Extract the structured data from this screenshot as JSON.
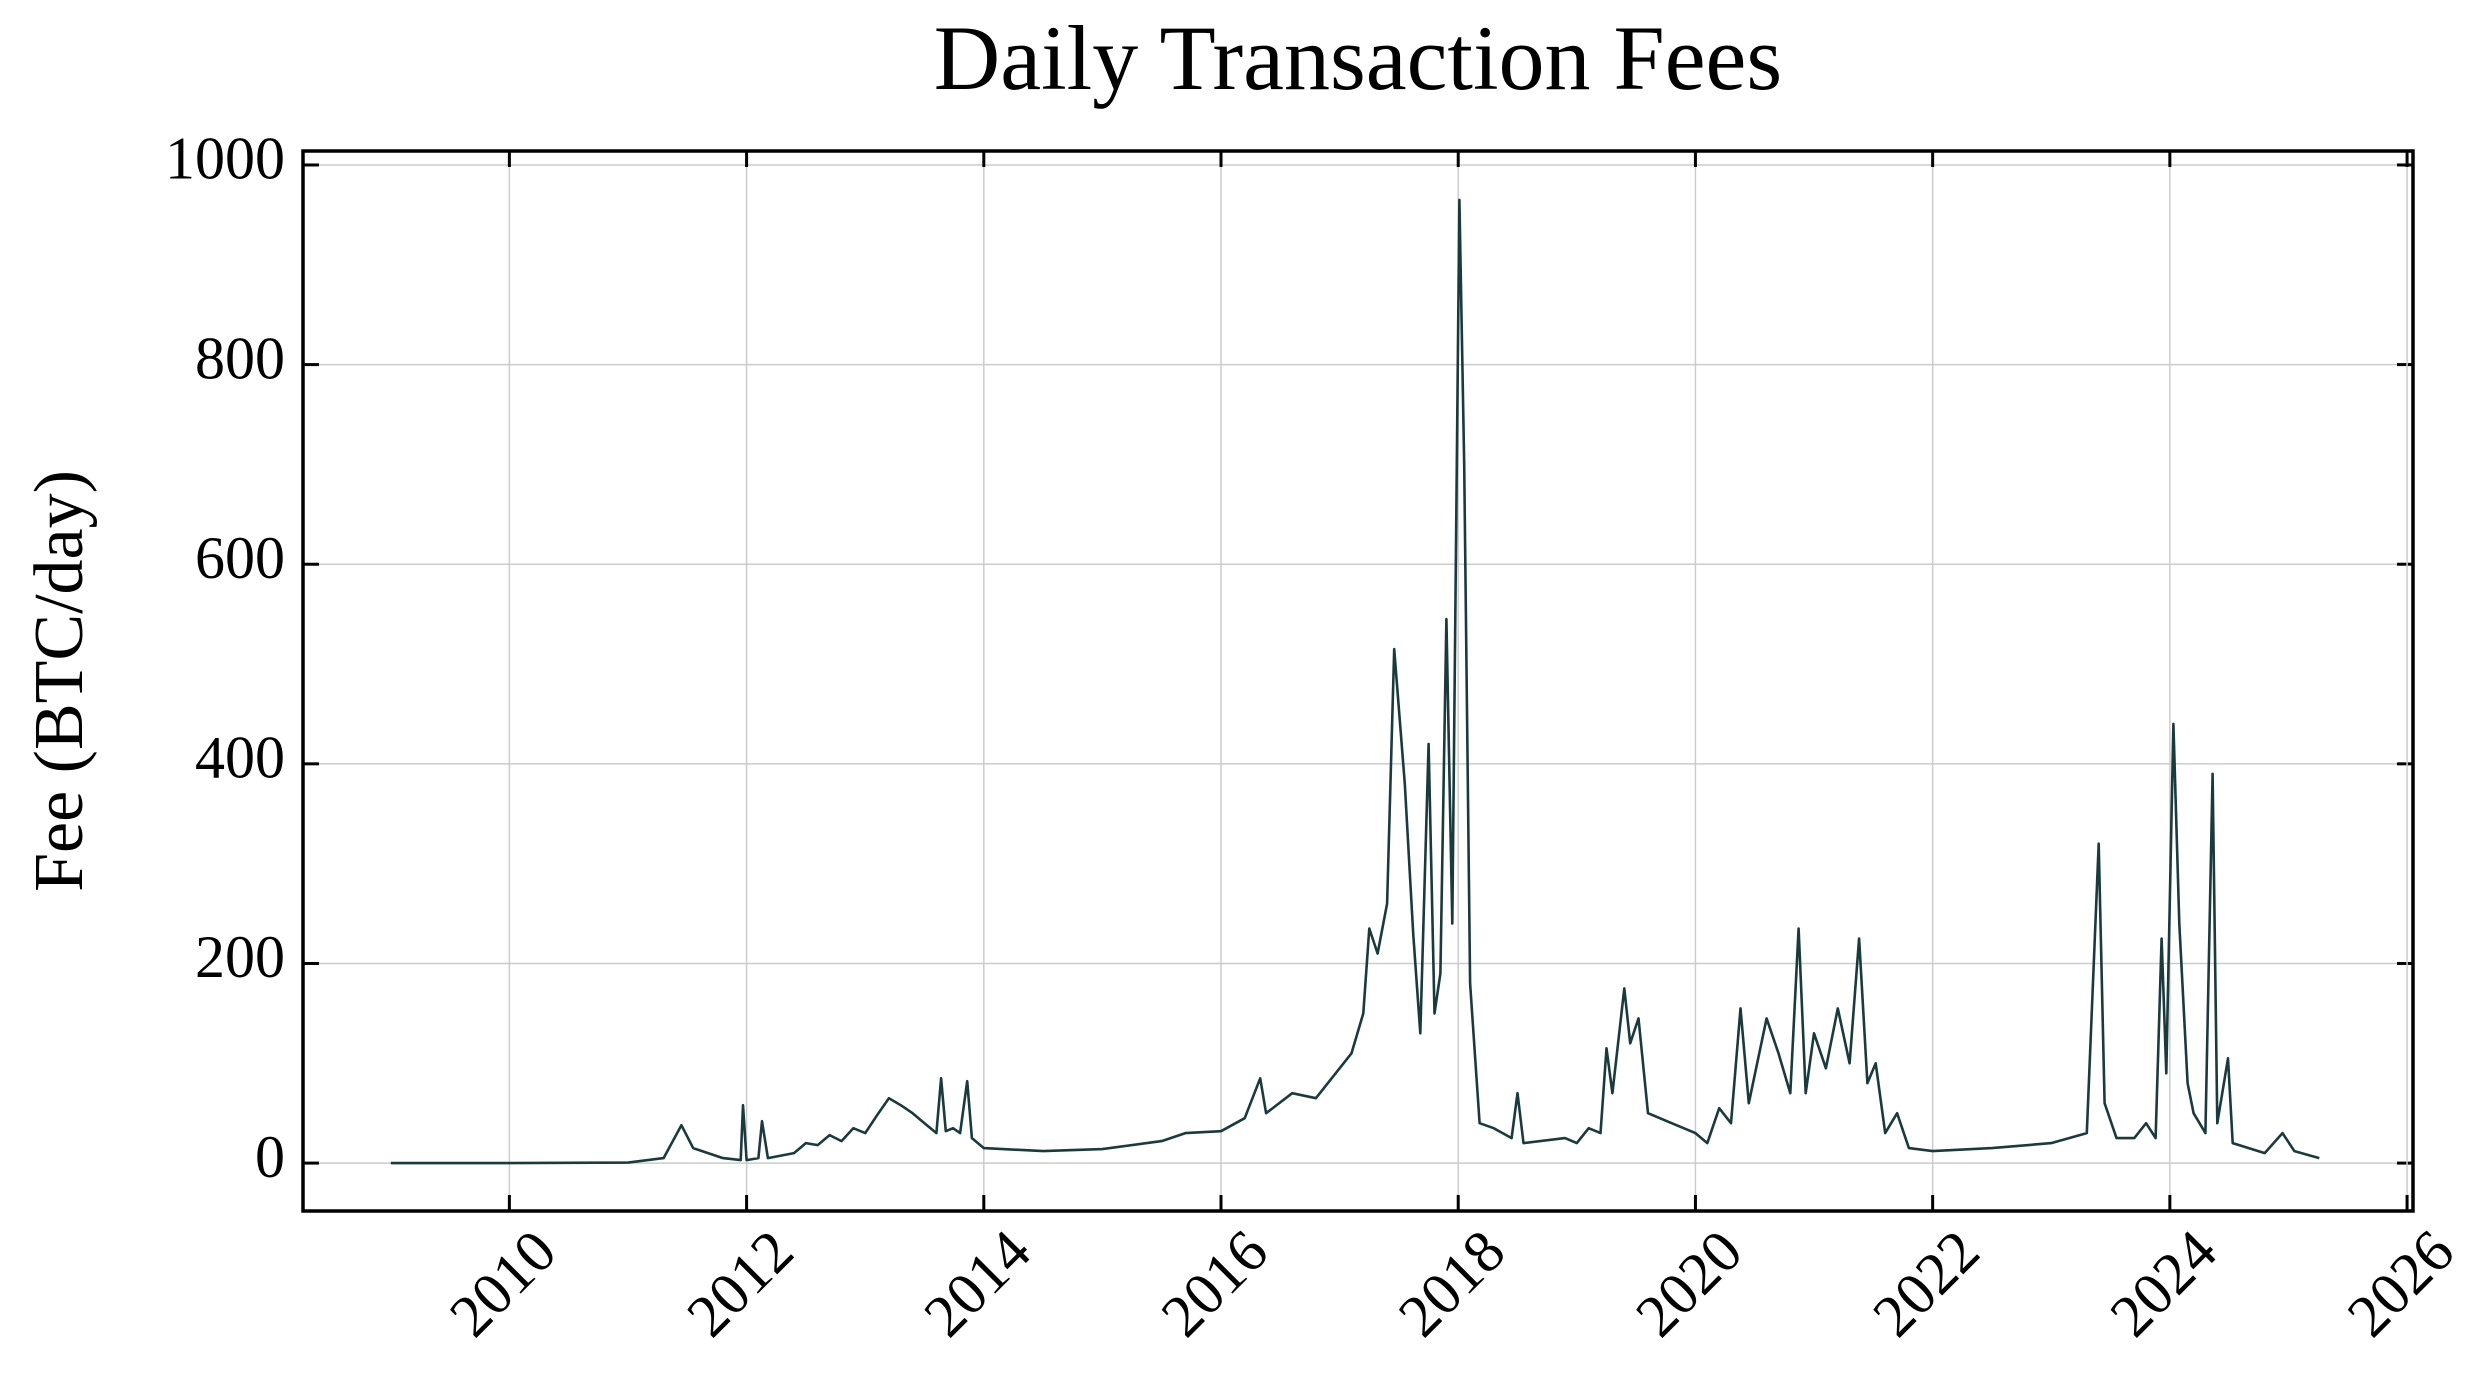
{
  "chart_data": {
    "type": "line",
    "title": "Daily Transaction Fees",
    "y_label": "Fee (BTC/day)",
    "x": [
      2009.0,
      2010.0,
      2011.0,
      2011.3,
      2011.45,
      2011.55,
      2011.8,
      2011.95,
      2011.97,
      2012.0,
      2012.1,
      2012.13,
      2012.18,
      2012.4,
      2012.5,
      2012.6,
      2012.7,
      2012.8,
      2012.9,
      2013.0,
      2013.1,
      2013.2,
      2013.3,
      2013.4,
      2013.5,
      2013.6,
      2013.64,
      2013.68,
      2013.74,
      2013.8,
      2013.86,
      2013.9,
      2014.0,
      2014.5,
      2015.0,
      2015.5,
      2015.7,
      2016.0,
      2016.2,
      2016.33,
      2016.38,
      2016.6,
      2016.8,
      2017.0,
      2017.1,
      2017.2,
      2017.25,
      2017.32,
      2017.4,
      2017.46,
      2017.55,
      2017.62,
      2017.68,
      2017.75,
      2017.8,
      2017.85,
      2017.9,
      2017.95,
      2018.01,
      2018.05,
      2018.1,
      2018.18,
      2018.3,
      2018.45,
      2018.5,
      2018.55,
      2018.9,
      2019.0,
      2019.1,
      2019.2,
      2019.25,
      2019.3,
      2019.4,
      2019.45,
      2019.52,
      2019.6,
      2019.8,
      2020.0,
      2020.1,
      2020.2,
      2020.3,
      2020.38,
      2020.45,
      2020.6,
      2020.7,
      2020.8,
      2020.87,
      2020.93,
      2021.0,
      2021.1,
      2021.2,
      2021.3,
      2021.38,
      2021.45,
      2021.52,
      2021.6,
      2021.7,
      2021.8,
      2022.0,
      2022.5,
      2023.0,
      2023.15,
      2023.3,
      2023.4,
      2023.45,
      2023.55,
      2023.7,
      2023.8,
      2023.88,
      2023.93,
      2023.97,
      2024.03,
      2024.08,
      2024.15,
      2024.2,
      2024.3,
      2024.36,
      2024.4,
      2024.49,
      2024.53,
      2024.8,
      2024.95,
      2025.05,
      2025.26
    ],
    "values": [
      0,
      0,
      0.5,
      5,
      38,
      15,
      5,
      3,
      58,
      3,
      5,
      42,
      5,
      10,
      20,
      18,
      28,
      22,
      35,
      30,
      48,
      65,
      58,
      50,
      40,
      30,
      85,
      32,
      35,
      30,
      82,
      25,
      15,
      12,
      14,
      22,
      30,
      32,
      45,
      85,
      50,
      70,
      65,
      95,
      110,
      150,
      235,
      210,
      260,
      515,
      380,
      230,
      130,
      420,
      150,
      190,
      545,
      240,
      965,
      700,
      180,
      40,
      35,
      25,
      70,
      20,
      25,
      20,
      35,
      30,
      115,
      70,
      175,
      120,
      145,
      50,
      40,
      30,
      20,
      55,
      40,
      155,
      60,
      145,
      110,
      70,
      235,
      70,
      130,
      95,
      155,
      100,
      225,
      80,
      100,
      30,
      50,
      15,
      12,
      15,
      20,
      25,
      30,
      320,
      60,
      25,
      25,
      40,
      25,
      225,
      90,
      440,
      240,
      80,
      50,
      30,
      390,
      40,
      105,
      20,
      10,
      30,
      12,
      5
    ],
    "color": "#1b3a3d",
    "xlim": [
      2008.26,
      2026.05
    ],
    "xticks": [
      2010,
      2012,
      2014,
      2016,
      2018,
      2020,
      2022,
      2024,
      2026
    ],
    "ylim": [
      -48,
      1014
    ],
    "yticks": [
      0,
      200,
      400,
      600,
      800,
      1000
    ],
    "grid": true
  }
}
